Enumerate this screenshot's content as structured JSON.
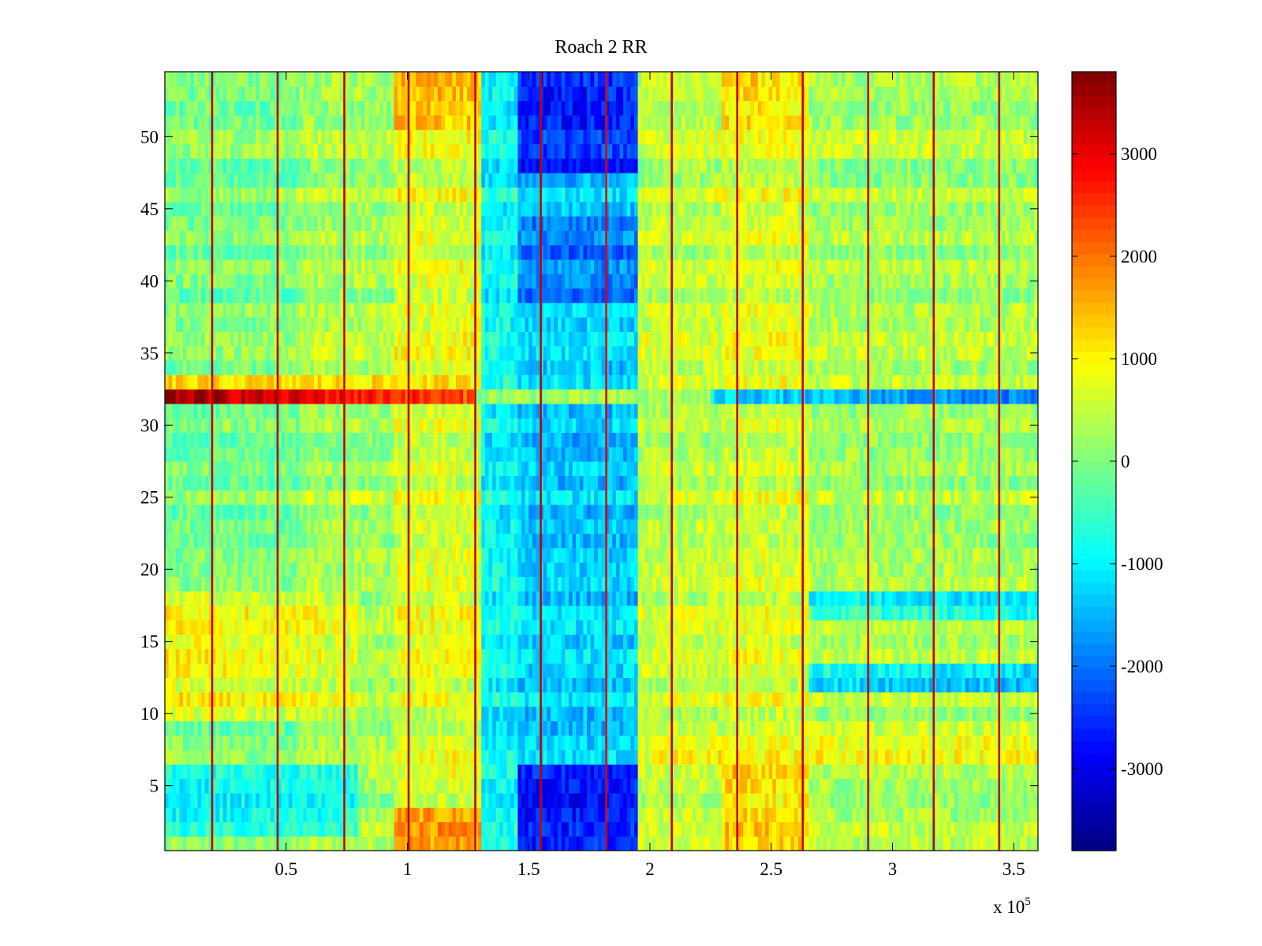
{
  "chart_data": {
    "type": "heatmap",
    "title": "Roach 2 RR",
    "xlabel": "",
    "ylabel": "",
    "x_multiplier_base": "x 10",
    "x_multiplier_exponent": "5",
    "xlim": [
      0,
      3.6
    ],
    "ylim": [
      0.5,
      54.5
    ],
    "rows": 54,
    "x_ticks": [
      {
        "value": 0.5,
        "label": "0.5"
      },
      {
        "value": 1,
        "label": "1"
      },
      {
        "value": 1.5,
        "label": "1.5"
      },
      {
        "value": 2,
        "label": "2"
      },
      {
        "value": 2.5,
        "label": "2.5"
      },
      {
        "value": 3,
        "label": "3"
      },
      {
        "value": 3.5,
        "label": "3.5"
      }
    ],
    "y_ticks": [
      {
        "value": 5,
        "label": "5"
      },
      {
        "value": 10,
        "label": "10"
      },
      {
        "value": 15,
        "label": "15"
      },
      {
        "value": 20,
        "label": "20"
      },
      {
        "value": 25,
        "label": "25"
      },
      {
        "value": 30,
        "label": "30"
      },
      {
        "value": 35,
        "label": "35"
      },
      {
        "value": 40,
        "label": "40"
      },
      {
        "value": 45,
        "label": "45"
      },
      {
        "value": 50,
        "label": "50"
      }
    ],
    "colorbar": {
      "colormap": "jet",
      "clim": [
        -3800,
        3800
      ],
      "ticks": [
        {
          "value": 3000,
          "label": "3000"
        },
        {
          "value": 2000,
          "label": "2000"
        },
        {
          "value": 1000,
          "label": "1000"
        },
        {
          "value": 0,
          "label": "0"
        },
        {
          "value": -1000,
          "label": "-1000"
        },
        {
          "value": -2000,
          "label": "-2000"
        },
        {
          "value": -3000,
          "label": "-3000"
        }
      ]
    },
    "baseline_value": 200,
    "column_regions": [
      {
        "x_start": 0.0,
        "x_end": 0.55,
        "value": 0
      },
      {
        "x_start": 0.55,
        "x_end": 0.95,
        "value": 300
      },
      {
        "x_start": 0.95,
        "x_end": 1.3,
        "value": 700
      },
      {
        "x_start": 1.3,
        "x_end": 1.45,
        "value": -900
      },
      {
        "x_start": 1.45,
        "x_end": 1.95,
        "value": -1300
      },
      {
        "x_start": 1.95,
        "x_end": 2.3,
        "value": 500
      },
      {
        "x_start": 2.3,
        "x_end": 2.65,
        "value": 650
      },
      {
        "x_start": 2.65,
        "x_end": 3.6,
        "value": 300
      }
    ],
    "features": [
      {
        "x_start": 0.0,
        "x_end": 1.28,
        "y_start": 31.5,
        "y_end": 32.5,
        "value_start": 3700,
        "value_end": 2300
      },
      {
        "x_start": 1.28,
        "x_end": 2.25,
        "y_start": 31.5,
        "y_end": 32.5,
        "value_start": 300,
        "value_end": 300
      },
      {
        "x_start": 2.25,
        "x_end": 3.6,
        "y_start": 31.5,
        "y_end": 32.5,
        "value_start": -1100,
        "value_end": -1900
      },
      {
        "x_start": 0.0,
        "x_end": 1.3,
        "y_start": 32.5,
        "y_end": 33.5,
        "value_start": 1000,
        "value_end": 900
      },
      {
        "x_start": 1.45,
        "x_end": 1.95,
        "y_start": 0.5,
        "y_end": 6.5,
        "value_start": -2800,
        "value_end": -2600
      },
      {
        "x_start": 1.45,
        "x_end": 1.95,
        "y_start": 47.5,
        "y_end": 54.5,
        "value_start": -2600,
        "value_end": -2500
      },
      {
        "x_start": 1.45,
        "x_end": 1.95,
        "y_start": 38.5,
        "y_end": 44.5,
        "value_start": -1900,
        "value_end": -1900
      },
      {
        "x_start": 0.95,
        "x_end": 1.3,
        "y_start": 0.5,
        "y_end": 3.5,
        "value_start": 1700,
        "value_end": 1500
      },
      {
        "x_start": 0.95,
        "x_end": 1.3,
        "y_start": 50.5,
        "y_end": 54.5,
        "value_start": 1600,
        "value_end": 1400
      },
      {
        "x_start": 0.0,
        "x_end": 0.8,
        "y_start": 9.5,
        "y_end": 18.5,
        "value_start": 900,
        "value_end": 600
      },
      {
        "x_start": 0.0,
        "x_end": 0.8,
        "y_start": 1.5,
        "y_end": 6.5,
        "value_start": -900,
        "value_end": -700
      },
      {
        "x_start": 2.3,
        "x_end": 2.65,
        "y_start": 0.5,
        "y_end": 6.5,
        "value_start": 1300,
        "value_end": 1100
      },
      {
        "x_start": 2.3,
        "x_end": 2.65,
        "y_start": 50.5,
        "y_end": 54.5,
        "value_start": 1300,
        "value_end": 1100
      },
      {
        "x_start": 2.0,
        "x_end": 3.6,
        "y_start": 6.5,
        "y_end": 9.5,
        "value_start": 800,
        "value_end": 800
      },
      {
        "x_start": 2.65,
        "x_end": 3.6,
        "y_start": 11.5,
        "y_end": 13.5,
        "value_start": -900,
        "value_end": -1300
      },
      {
        "x_start": 2.65,
        "x_end": 3.6,
        "y_start": 16.5,
        "y_end": 18.5,
        "value_start": -700,
        "value_end": -1000
      }
    ],
    "vertical_streaks": [
      {
        "x": 0.195,
        "value": 3300
      },
      {
        "x": 0.465,
        "value": 3400
      },
      {
        "x": 0.74,
        "value": 3300
      },
      {
        "x": 1.005,
        "value": 3400
      },
      {
        "x": 1.28,
        "value": 3300
      },
      {
        "x": 1.55,
        "value": 3300
      },
      {
        "x": 1.82,
        "value": 3100
      },
      {
        "x": 2.09,
        "value": 3300
      },
      {
        "x": 2.36,
        "value": 3300
      },
      {
        "x": 2.63,
        "value": 3300
      },
      {
        "x": 2.9,
        "value": 3300
      },
      {
        "x": 3.17,
        "value": 3300
      },
      {
        "x": 3.44,
        "value": 3300
      }
    ]
  }
}
